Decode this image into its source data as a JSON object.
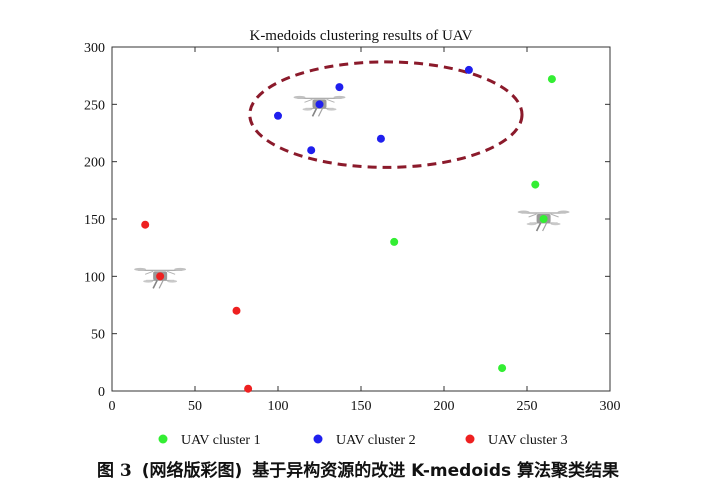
{
  "chart_data": {
    "type": "scatter",
    "title": "K-medoids clustering results of  UAV",
    "xlabel": "",
    "ylabel": "",
    "xlim": [
      0,
      300
    ],
    "ylim": [
      0,
      300
    ],
    "xticks": [
      0,
      50,
      100,
      150,
      200,
      250,
      300
    ],
    "yticks": [
      0,
      50,
      100,
      150,
      200,
      250,
      300
    ],
    "grid": false,
    "legend_position": "bottom",
    "series": [
      {
        "name": "UAV cluster 1",
        "color": "#33ee33",
        "points": [
          [
            265,
            272
          ],
          [
            255,
            180
          ],
          [
            170,
            130
          ],
          [
            260,
            150
          ],
          [
            235,
            20
          ]
        ],
        "medoid": [
          260,
          150
        ]
      },
      {
        "name": "UAV cluster 2",
        "color": "#1f1fee",
        "points": [
          [
            215,
            280
          ],
          [
            137,
            265
          ],
          [
            125,
            250
          ],
          [
            100,
            240
          ],
          [
            162,
            220
          ],
          [
            120,
            210
          ]
        ],
        "medoid": [
          125,
          250
        ]
      },
      {
        "name": "UAV cluster 3",
        "color": "#ee2020",
        "points": [
          [
            20,
            145
          ],
          [
            29,
            100
          ],
          [
            75,
            70
          ],
          [
            82,
            2
          ]
        ],
        "medoid": [
          29,
          100
        ]
      }
    ],
    "highlight_ellipse": {
      "cx": 165,
      "cy": 241,
      "rx": 82,
      "ry": 46,
      "color": "#8b1a2b",
      "style": "dashed"
    }
  },
  "caption": {
    "label": "图 3",
    "note": "(网络版彩图)",
    "text": "基于异构资源的改进 K-medoids 算法聚类结果"
  }
}
